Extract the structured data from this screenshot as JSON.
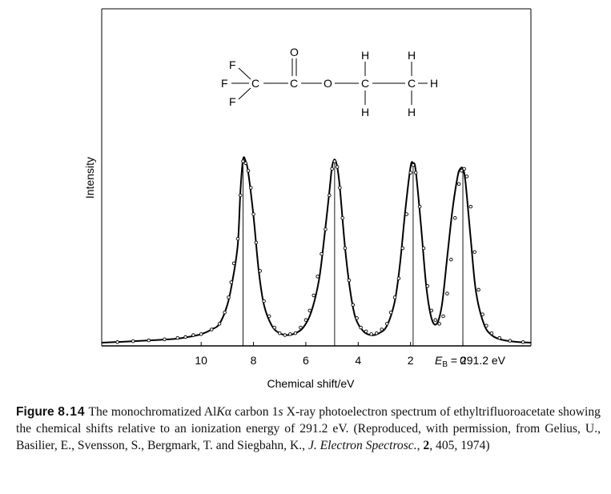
{
  "chart_data": {
    "type": "line",
    "xlabel": "Chemical shift/eV",
    "ylabel": "Intensity",
    "xlim": [
      13.8,
      -2.6
    ],
    "ylim": [
      0,
      1.0
    ],
    "x_axis_reversed": true,
    "x_ticks": [
      {
        "value": 10,
        "label": "10"
      },
      {
        "value": 8,
        "label": "8"
      },
      {
        "value": 6,
        "label": "6"
      },
      {
        "value": 4,
        "label": "4"
      },
      {
        "value": 2,
        "label": "2"
      },
      {
        "value": 0,
        "label": "0"
      }
    ],
    "axis_annotation": {
      "prefix": "E",
      "subscript": "B",
      "suffix": " = 291.2 eV"
    },
    "peaks": [
      {
        "position": 8.4,
        "relative_height": 0.97
      },
      {
        "position": 4.9,
        "relative_height": 0.97
      },
      {
        "position": 1.9,
        "relative_height": 0.95
      },
      {
        "position": 0.0,
        "relative_height": 0.92
      }
    ],
    "series": [
      {
        "style": "line",
        "x": [
          13.8,
          13.0,
          12.0,
          11.0,
          10.5,
          10.0,
          9.6,
          9.3,
          9.0,
          8.8,
          8.6,
          8.5,
          8.4,
          8.3,
          8.2,
          8.0,
          7.8,
          7.6,
          7.3,
          7.0,
          6.7,
          6.4,
          6.1,
          5.8,
          5.5,
          5.3,
          5.1,
          5.0,
          4.9,
          4.8,
          4.7,
          4.5,
          4.3,
          4.1,
          3.8,
          3.5,
          3.2,
          2.9,
          2.6,
          2.4,
          2.2,
          2.0,
          1.9,
          1.8,
          1.6,
          1.4,
          1.2,
          1.0,
          0.8,
          0.6,
          0.4,
          0.2,
          0.1,
          0.0,
          -0.1,
          -0.3,
          -0.5,
          -0.8,
          -1.1,
          -1.5,
          -2.0,
          -2.6
        ],
        "y": [
          0.0,
          0.005,
          0.012,
          0.02,
          0.03,
          0.045,
          0.07,
          0.1,
          0.2,
          0.33,
          0.52,
          0.8,
          0.97,
          0.96,
          0.9,
          0.67,
          0.38,
          0.2,
          0.09,
          0.05,
          0.04,
          0.05,
          0.08,
          0.16,
          0.33,
          0.55,
          0.8,
          0.93,
          0.97,
          0.93,
          0.82,
          0.5,
          0.27,
          0.13,
          0.06,
          0.04,
          0.05,
          0.09,
          0.22,
          0.42,
          0.7,
          0.93,
          0.95,
          0.91,
          0.62,
          0.3,
          0.13,
          0.1,
          0.2,
          0.45,
          0.7,
          0.88,
          0.92,
          0.92,
          0.85,
          0.55,
          0.27,
          0.1,
          0.04,
          0.015,
          0.005,
          0.0
        ]
      },
      {
        "style": "points",
        "x": [
          13.2,
          12.6,
          12.0,
          11.4,
          10.9,
          10.6,
          10.3,
          10.0,
          9.6,
          9.3,
          9.1,
          8.95,
          8.85,
          8.75,
          8.6,
          8.5,
          8.4,
          8.3,
          8.2,
          8.1,
          8.0,
          7.9,
          7.75,
          7.6,
          7.4,
          7.2,
          7.0,
          6.8,
          6.6,
          6.4,
          6.2,
          6.0,
          5.85,
          5.7,
          5.55,
          5.4,
          5.25,
          5.1,
          5.0,
          4.9,
          4.8,
          4.7,
          4.6,
          4.5,
          4.35,
          4.2,
          4.05,
          3.9,
          3.7,
          3.5,
          3.3,
          3.1,
          2.9,
          2.75,
          2.6,
          2.45,
          2.3,
          2.15,
          2.0,
          1.9,
          1.8,
          1.65,
          1.5,
          1.35,
          1.2,
          1.05,
          0.9,
          0.75,
          0.6,
          0.45,
          0.3,
          0.15,
          0.05,
          -0.05,
          -0.15,
          -0.3,
          -0.45,
          -0.6,
          -0.75,
          -0.9,
          -1.1,
          -1.4,
          -1.8,
          -2.3
        ],
        "y": [
          0.003,
          0.008,
          0.012,
          0.018,
          0.025,
          0.03,
          0.04,
          0.045,
          0.07,
          0.1,
          0.16,
          0.24,
          0.32,
          0.42,
          0.55,
          0.78,
          0.96,
          0.95,
          0.91,
          0.82,
          0.68,
          0.53,
          0.38,
          0.22,
          0.14,
          0.08,
          0.05,
          0.04,
          0.045,
          0.05,
          0.08,
          0.12,
          0.17,
          0.25,
          0.35,
          0.47,
          0.6,
          0.78,
          0.92,
          0.96,
          0.93,
          0.82,
          0.66,
          0.5,
          0.33,
          0.2,
          0.13,
          0.08,
          0.06,
          0.045,
          0.05,
          0.07,
          0.1,
          0.16,
          0.24,
          0.34,
          0.5,
          0.68,
          0.9,
          0.94,
          0.9,
          0.72,
          0.5,
          0.3,
          0.17,
          0.12,
          0.1,
          0.14,
          0.26,
          0.44,
          0.66,
          0.84,
          0.91,
          0.92,
          0.88,
          0.72,
          0.48,
          0.28,
          0.15,
          0.09,
          0.05,
          0.025,
          0.01,
          0.003
        ]
      }
    ]
  },
  "structure": {
    "f_top": "F",
    "f_left": "F",
    "f_bottom": "F",
    "c1": "C",
    "o_dbl": "O",
    "c2": "C",
    "o_ester": "O",
    "h_top_1": "H",
    "c3": "C",
    "h_bottom_1": "H",
    "h_top_2": "H",
    "c4": "C",
    "h_right": "H",
    "h_bottom_2": "H"
  },
  "caption": {
    "label": "Figure",
    "number": "8.14",
    "text_1": " The monochromatized Al",
    "k_italic": "K",
    "alpha": "α",
    "text_2": " carbon 1",
    "s_italic": "s",
    "text_3": " X-ray photoelectron spectrum of ethyltrifluoroacetate showing the chemical shifts relative to an ionization energy of 291.2 eV. (Reproduced, with permission, from Gelius, U., Basilier, E., Svensson, S., Bergmark, T. and Siegbahn, K., ",
    "journal": "J. Electron Spectrosc.",
    "text_4": ", ",
    "volume": "2",
    "text_5": ", 405, 1974)"
  }
}
